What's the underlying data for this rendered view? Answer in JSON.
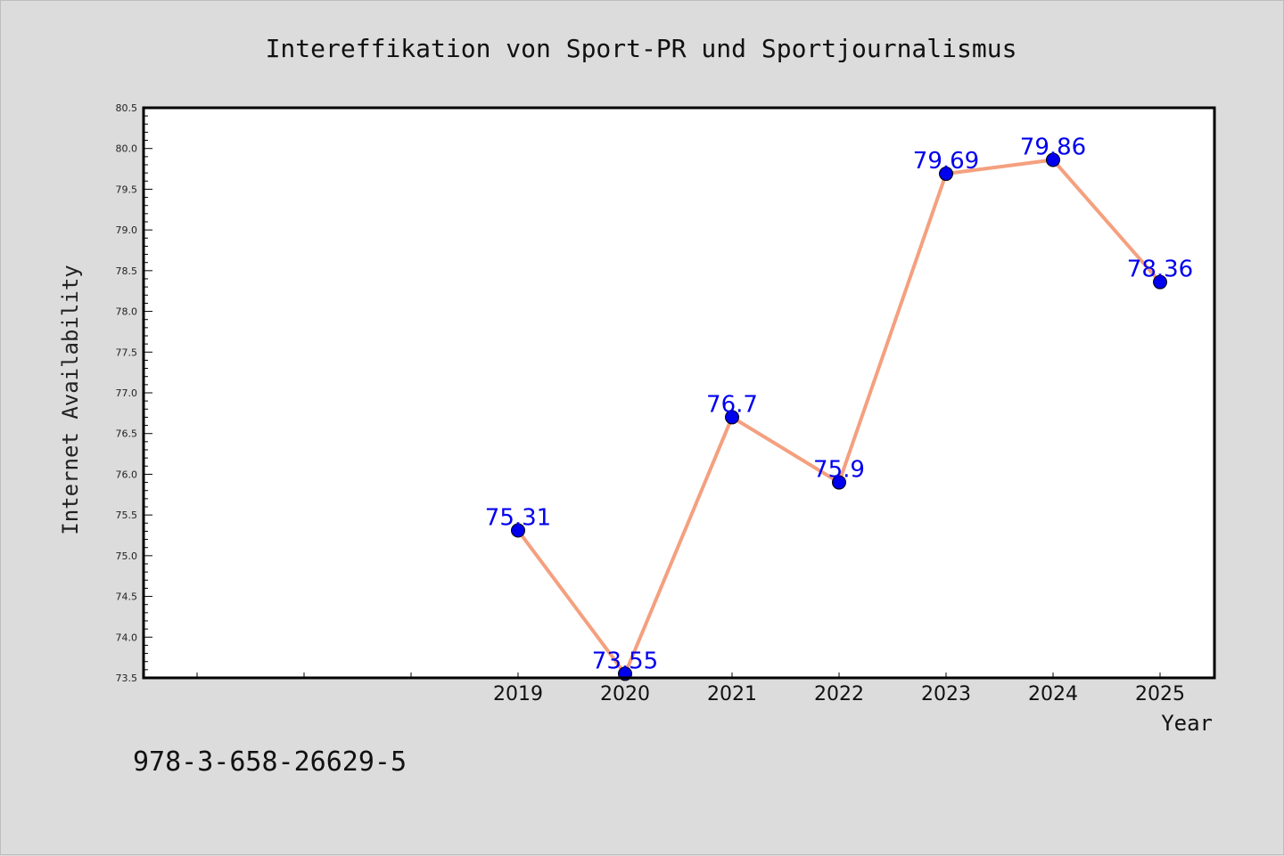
{
  "chart_data": {
    "type": "line",
    "title": "Intereffikation von Sport-PR und Sportjournalismus",
    "xlabel": "Year",
    "ylabel": "Internet Availability",
    "x": [
      "2019",
      "2020",
      "2021",
      "2022",
      "2023",
      "2024",
      "2025"
    ],
    "series": [
      {
        "values": [
          75.31,
          73.55,
          76.7,
          75.9,
          79.69,
          79.86,
          78.36
        ],
        "data_labels": [
          "75.31",
          "73.55",
          "76.7",
          "75.9",
          "79.69",
          "79.86",
          "78.36"
        ]
      }
    ],
    "ylim": [
      73.5,
      80.5
    ],
    "yticks": [
      "73.5",
      "74.0",
      "74.5",
      "75.0",
      "75.5",
      "76.0",
      "76.5",
      "77.0",
      "77.5",
      "78.0",
      "78.5",
      "79.0",
      "79.5",
      "80.0",
      "80.5"
    ],
    "grid": false,
    "line_color": "#f4a07f",
    "marker_color": "#0000ee",
    "label_color": "#0000ee"
  },
  "footer": {
    "isbn": "978-3-658-26629-5"
  }
}
